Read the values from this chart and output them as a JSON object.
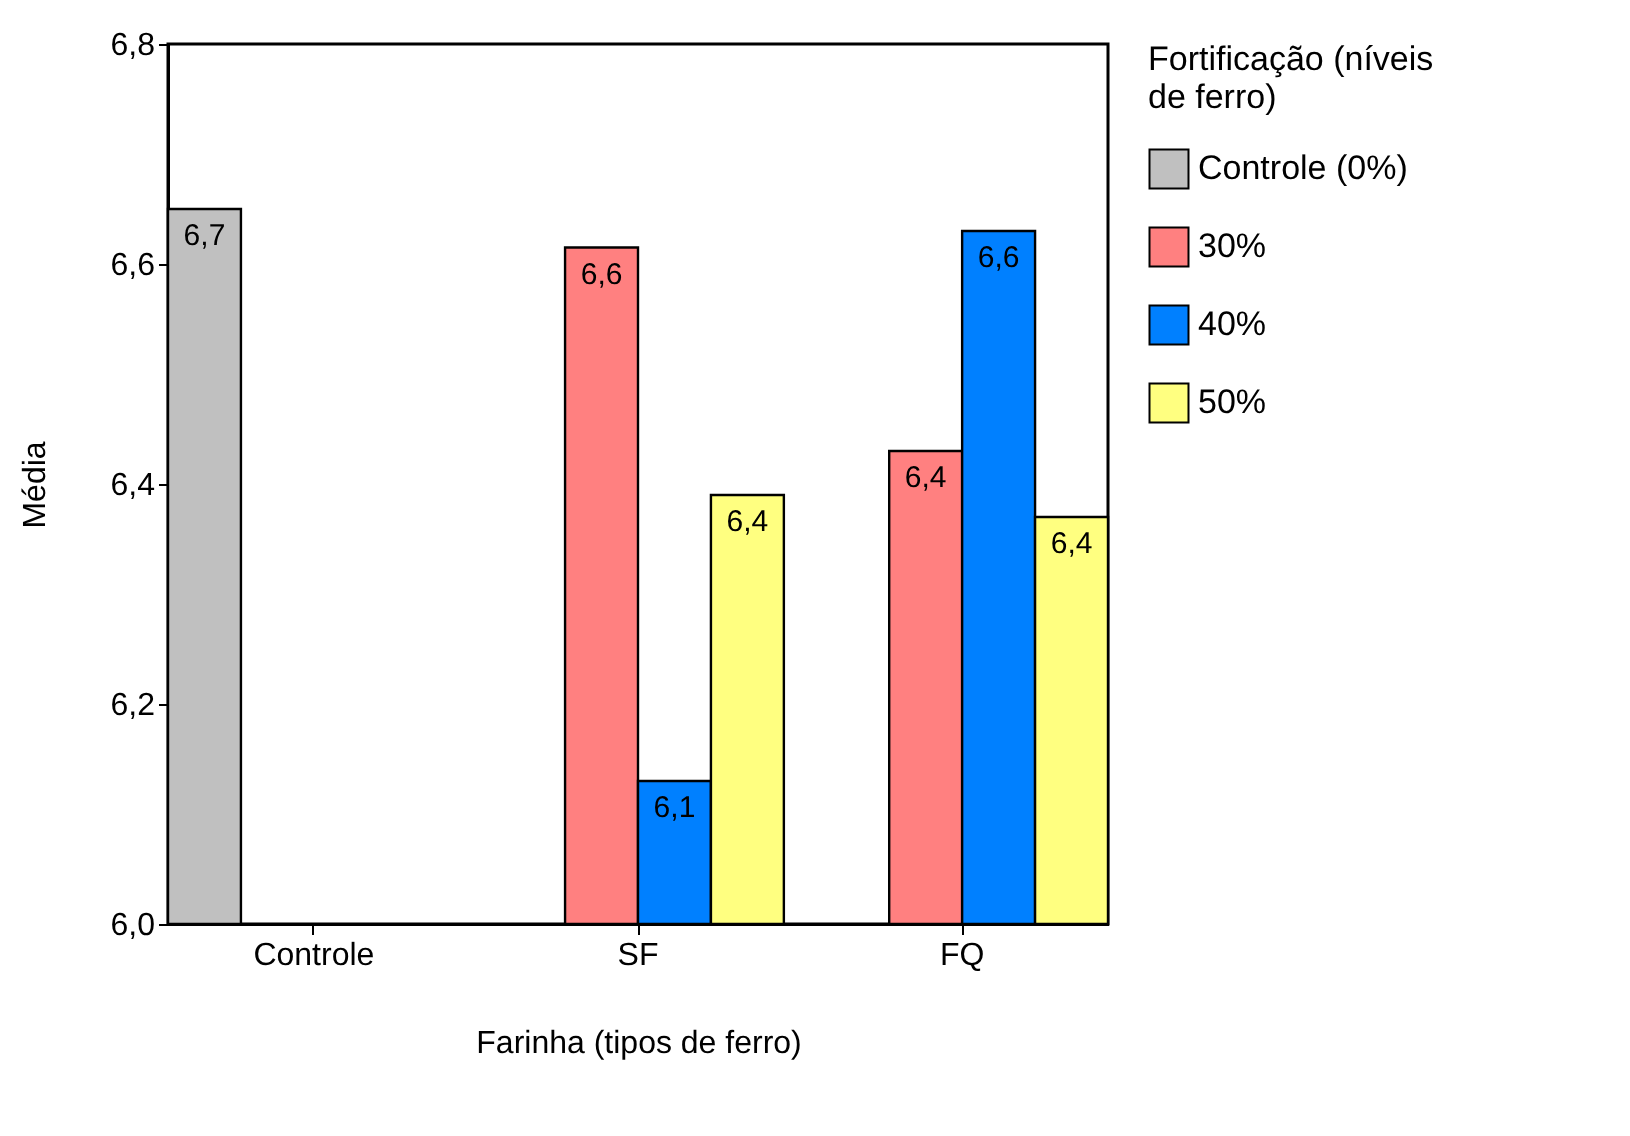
{
  "chart_data": {
    "type": "bar",
    "xlabel": "Farinha (tipos de ferro)",
    "ylabel": "Média",
    "legend_title": "Fortificação (níveis de ferro)",
    "categories": [
      "Controle",
      "SF",
      "FQ"
    ],
    "series": [
      {
        "name": "Controle (0%)",
        "color": "#c0c0c0",
        "values": [
          6.65,
          null,
          null
        ],
        "value_labels": [
          "6,7",
          null,
          null
        ]
      },
      {
        "name": "30%",
        "color": "#ff8080",
        "values": [
          null,
          6.615,
          6.43
        ],
        "value_labels": [
          null,
          "6,6",
          "6,4"
        ]
      },
      {
        "name": "40%",
        "color": "#0080ff",
        "values": [
          null,
          6.13,
          6.63
        ],
        "value_labels": [
          null,
          "6,1",
          "6,6"
        ]
      },
      {
        "name": "50%",
        "color": "#ffff80",
        "values": [
          null,
          6.39,
          6.37
        ],
        "value_labels": [
          null,
          "6,4",
          "6,4"
        ]
      }
    ],
    "ylim": [
      6.0,
      6.8
    ],
    "yticks": [
      {
        "value": 6.0,
        "label": "6,0"
      },
      {
        "value": 6.2,
        "label": "6,2"
      },
      {
        "value": 6.4,
        "label": "6,4"
      },
      {
        "value": 6.6,
        "label": "6,6"
      },
      {
        "value": 6.8,
        "label": "6,8"
      }
    ],
    "grid": false,
    "legend": "right"
  }
}
